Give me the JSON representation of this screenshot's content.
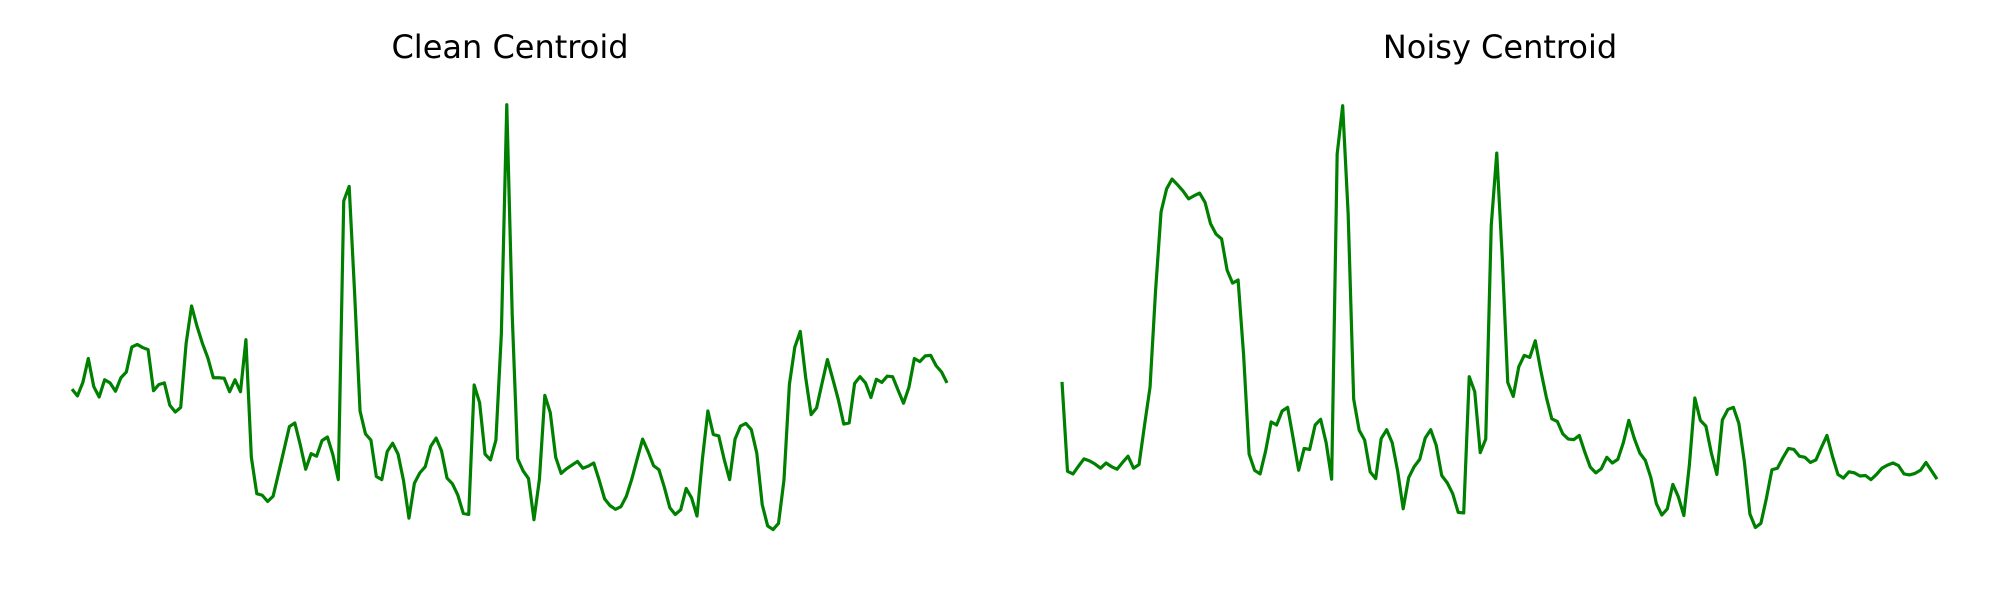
{
  "chart_data": [
    {
      "type": "line",
      "title": "Clean Centroid",
      "axes_visible": false,
      "grid": false,
      "line_color": "#008000",
      "ylim": [
        0,
        100
      ],
      "series": [
        {
          "values": [
            36.7,
            35.4,
            38.0,
            42.6,
            37.2,
            35.2,
            38.5,
            37.9,
            36.3,
            38.9,
            40.0,
            44.8,
            45.3,
            44.7,
            44.3,
            36.4,
            37.6,
            37.9,
            33.6,
            32.3,
            33.2,
            45.5,
            52.7,
            48.8,
            45.5,
            42.7,
            38.9,
            38.9,
            38.8,
            36.2,
            38.5,
            36.2,
            46.2,
            23.6,
            16.6,
            16.3,
            15.1,
            16.1,
            20.5,
            25.0,
            29.5,
            30.2,
            26.0,
            21.3,
            24.3,
            23.8,
            26.8,
            27.5,
            24.1,
            19.3,
            72.9,
            75.7,
            55.2,
            32.5,
            28.1,
            26.9,
            19.9,
            19.3,
            24.7,
            26.3,
            24.2,
            19.1,
            11.9,
            18.6,
            20.6,
            21.8,
            25.7,
            27.3,
            24.8,
            19.6,
            18.5,
            16.3,
            12.8,
            12.6,
            37.5,
            34.1,
            24.2,
            23.1,
            26.9,
            47.3,
            91.4,
            51.0,
            23.3,
            21.0,
            19.5,
            11.6,
            19.3,
            35.5,
            32.2,
            23.6,
            20.5,
            21.4,
            22.1,
            22.8,
            21.5,
            21.9,
            22.5,
            19.2,
            15.6,
            14.3,
            13.6,
            14.1,
            16.1,
            19.4,
            23.3,
            27.1,
            24.7,
            22.0,
            21.2,
            17.8,
            13.9,
            12.6,
            13.5,
            17.6,
            15.8,
            12.3,
            23.3,
            32.5,
            28.0,
            27.7,
            23.2,
            19.3,
            27.1,
            29.6,
            30.1,
            28.9,
            24.4,
            14.5,
            10.4,
            9.7,
            10.9,
            19.2,
            37.6,
            44.8,
            47.8,
            38.9,
            31.8,
            33.1,
            37.8,
            42.4,
            38.6,
            34.7,
            30.0,
            30.2,
            37.8,
            39.1,
            37.9,
            35.1,
            38.6,
            38.0,
            39.2,
            39.1,
            36.5,
            34.0,
            37.1,
            42.6,
            42.0,
            43.1,
            43.2,
            41.2,
            40.0,
            37.9
          ]
        }
      ]
    },
    {
      "type": "line",
      "title": "Noisy Centroid",
      "axes_visible": false,
      "grid": false,
      "line_color": "#008000",
      "ylim": [
        0,
        100
      ],
      "series": [
        {
          "values": [
            38.1,
            20.9,
            20.4,
            21.9,
            23.3,
            22.9,
            22.3,
            21.5,
            22.5,
            21.8,
            21.3,
            22.6,
            23.8,
            21.5,
            22.2,
            29.8,
            37.1,
            55.6,
            70.8,
            75.2,
            77.1,
            76.0,
            74.8,
            73.3,
            73.9,
            74.4,
            72.6,
            68.5,
            66.5,
            65.6,
            59.6,
            57.1,
            57.7,
            43.3,
            24.2,
            21.1,
            20.4,
            24.8,
            30.4,
            29.8,
            32.5,
            33.2,
            27.3,
            21.1,
            25.3,
            25.1,
            29.8,
            30.9,
            26.4,
            19.4,
            81.9,
            91.2,
            70.4,
            34.8,
            28.8,
            26.9,
            20.8,
            19.5,
            27.2,
            28.9,
            26.4,
            20.9,
            13.7,
            19.7,
            21.8,
            23.2,
            27.3,
            28.9,
            25.9,
            20.1,
            18.7,
            16.6,
            13.0,
            12.9,
            39.1,
            36.2,
            24.5,
            27.1,
            68.2,
            82.1,
            61.9,
            38.0,
            35.3,
            41.0,
            43.2,
            42.8,
            46.0,
            40.3,
            35.2,
            31.0,
            30.5,
            28.1,
            27.1,
            27.0,
            27.8,
            24.6,
            21.7,
            20.6,
            21.4,
            23.6,
            22.5,
            23.2,
            26.4,
            30.7,
            27.2,
            24.4,
            23.0,
            19.7,
            14.7,
            12.5,
            13.7,
            18.4,
            16.0,
            12.4,
            22.1,
            35.0,
            30.7,
            29.6,
            24.4,
            20.3,
            30.8,
            32.8,
            33.2,
            30.1,
            22.7,
            12.7,
            10.1,
            10.9,
            15.7,
            21.2,
            21.5,
            23.5,
            25.3,
            25.1,
            23.8,
            23.6,
            22.6,
            23.1,
            25.5,
            27.8,
            23.8,
            20.3,
            19.6,
            20.8,
            20.6,
            20.0,
            20.1,
            19.3,
            20.3,
            21.5,
            22.1,
            22.5,
            22.0,
            20.4,
            20.2,
            20.5,
            21.1,
            22.6,
            21.0,
            19.4
          ]
        }
      ]
    }
  ]
}
